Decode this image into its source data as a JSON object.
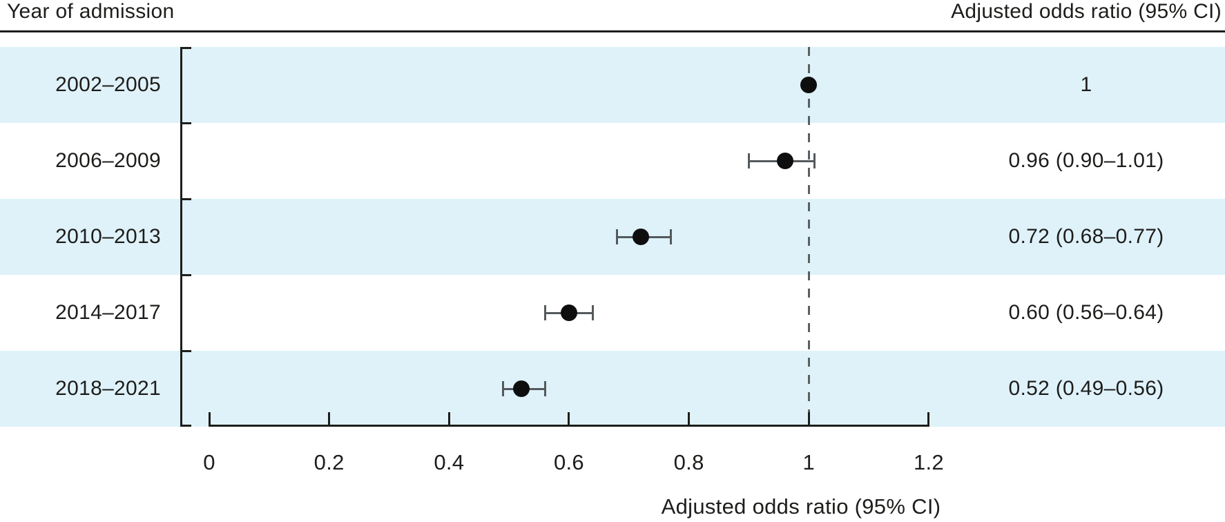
{
  "header": {
    "left": "Year of admission",
    "right": "Adjusted odds ratio (95% CI)"
  },
  "chart_data": {
    "type": "scatter",
    "subtype": "forest_plot",
    "title": "",
    "left_header": "Year of admission",
    "right_header": "Adjusted odds ratio (95% CI)",
    "categories": [
      "2002–2005",
      "2006–2009",
      "2010–2013",
      "2014–2017",
      "2018–2021"
    ],
    "series": [
      {
        "name": "Adjusted odds ratio",
        "values": [
          1,
          0.96,
          0.72,
          0.6,
          0.52
        ],
        "ci_low": [
          null,
          0.9,
          0.68,
          0.56,
          0.49
        ],
        "ci_high": [
          null,
          1.01,
          0.77,
          0.64,
          0.56
        ]
      }
    ],
    "value_labels": [
      "1",
      "0.96 (0.90–1.01)",
      "0.72 (0.68–0.77)",
      "0.60 (0.56–0.64)",
      "0.52 (0.49–0.56)"
    ],
    "xlabel": "Adjusted odds ratio (95% CI)",
    "ylabel": "Year of admission",
    "xlim": [
      0,
      1.2
    ],
    "x_ticks": {
      "values": [
        0,
        0.2,
        0.4,
        0.6,
        0.8,
        1,
        1.2
      ],
      "labels": [
        "0",
        "0.2",
        "0.4",
        "0.6",
        "0.8",
        "1",
        "1.2"
      ]
    },
    "reference_line": 1,
    "grid": false,
    "legend": "none",
    "shaded_rows": [
      0,
      2,
      4
    ]
  },
  "colors": {
    "band": "#dff2fa",
    "text": "#1d1d1b",
    "axis": "#1d1d1b",
    "whisker": "#54595c",
    "dashed": "#5a5f62",
    "point": "#0e0e0e"
  }
}
